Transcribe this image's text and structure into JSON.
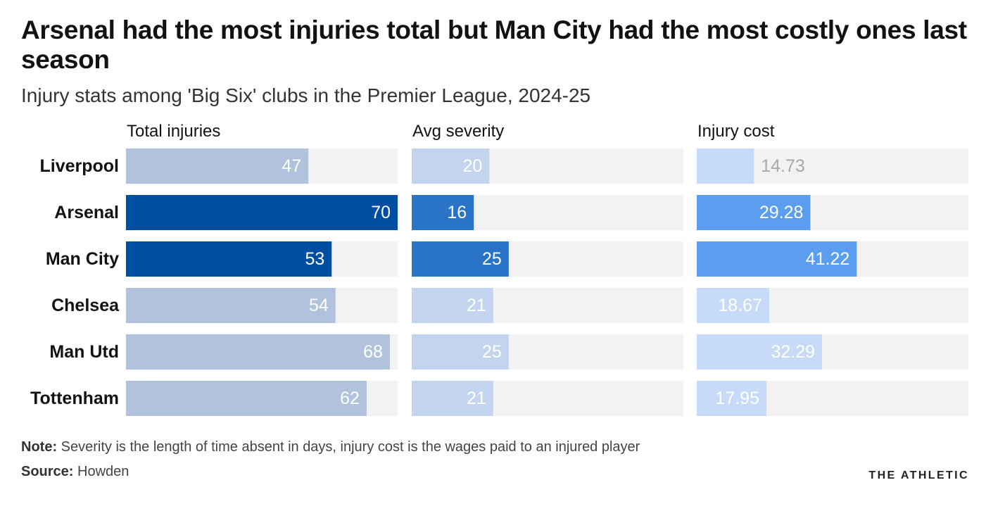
{
  "title": "Arsenal had the most injuries total but Man City had the most costly ones last season",
  "subtitle": "Injury stats among 'Big Six' clubs in the Premier League, 2024-25",
  "note": {
    "label": "Note:",
    "text": "Severity is the length of time absent in days, injury cost is the wages paid to an injured player"
  },
  "source": {
    "label": "Source:",
    "text": "Howden"
  },
  "brand": "THE ATHLETIC",
  "chart_data": {
    "type": "bar",
    "orientation": "horizontal",
    "categories": [
      "Liverpool",
      "Arsenal",
      "Man City",
      "Chelsea",
      "Man Utd",
      "Tottenham"
    ],
    "highlighted": [
      "Arsenal",
      "Man City"
    ],
    "series": [
      {
        "name": "Total injuries",
        "values": [
          47,
          70,
          53,
          54,
          68,
          62
        ],
        "xlim": [
          0,
          70
        ],
        "color": "#b0c2dc",
        "highlight_color": "#004ea2"
      },
      {
        "name": "Avg severity",
        "values": [
          20,
          16,
          25,
          21,
          25,
          21
        ],
        "xlim": [
          0,
          70
        ],
        "color": "#c3d5ee",
        "highlight_color": "#2a74c8"
      },
      {
        "name": "Injury cost",
        "values": [
          14.73,
          29.28,
          41.22,
          18.67,
          32.29,
          17.95
        ],
        "xlim": [
          0,
          70
        ],
        "labels": [
          "14.73",
          "29.28",
          "41.22",
          "18.67",
          "32.29",
          "17.95"
        ],
        "color": "#c7daf7",
        "highlight_color": "#5b9ef0"
      }
    ],
    "track_color": "#f2f2f2",
    "grid": false
  }
}
